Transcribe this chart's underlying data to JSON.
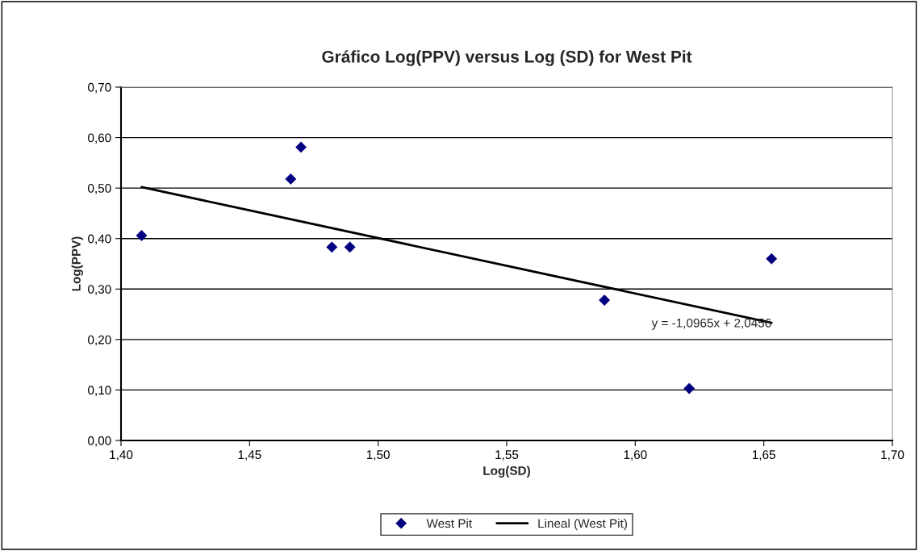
{
  "chart_data": {
    "type": "scatter",
    "title": "Gráfico Log(PPV) versus Log (SD) for West Pit",
    "xlabel": "Log(SD)",
    "ylabel": "Log(PPV)",
    "series": [
      {
        "name": "West Pit",
        "color": "#000080",
        "marker": "diamond",
        "x": [
          1.408,
          1.466,
          1.47,
          1.482,
          1.489,
          1.588,
          1.621,
          1.653
        ],
        "values": [
          0.406,
          0.518,
          0.581,
          0.383,
          0.383,
          0.278,
          0.103,
          0.36
        ]
      },
      {
        "name": "Lineal (West Pit)",
        "type": "line",
        "color": "#000000",
        "marker": "none",
        "line_style": "solid",
        "x": [
          1.408,
          1.653
        ],
        "values": [
          0.502,
          0.233
        ]
      }
    ],
    "annotations": [
      {
        "text": "y = -1,0965x + 2,0456",
        "x": 1.653,
        "y": 0.233
      }
    ],
    "xlim": [
      1.4,
      1.7
    ],
    "xticks": [
      {
        "value": 1.4,
        "label": "1,40"
      },
      {
        "value": 1.45,
        "label": "1,45"
      },
      {
        "value": 1.5,
        "label": "1,50"
      },
      {
        "value": 1.55,
        "label": "1,55"
      },
      {
        "value": 1.6,
        "label": "1,60"
      },
      {
        "value": 1.65,
        "label": "1,65"
      },
      {
        "value": 1.7,
        "label": "1,70"
      }
    ],
    "ylim": [
      0,
      0.7
    ],
    "yticks": [
      {
        "value": 0,
        "label": "0,00"
      },
      {
        "value": 0.1,
        "label": "0,10"
      },
      {
        "value": 0.2,
        "label": "0,20"
      },
      {
        "value": 0.3,
        "label": "0,30"
      },
      {
        "value": 0.4,
        "label": "0,40"
      },
      {
        "value": 0.5,
        "label": "0,50"
      },
      {
        "value": 0.6,
        "label": "0,60"
      },
      {
        "value": 0.7,
        "label": "0,70"
      }
    ],
    "grid": "y",
    "legend": "bottom"
  }
}
